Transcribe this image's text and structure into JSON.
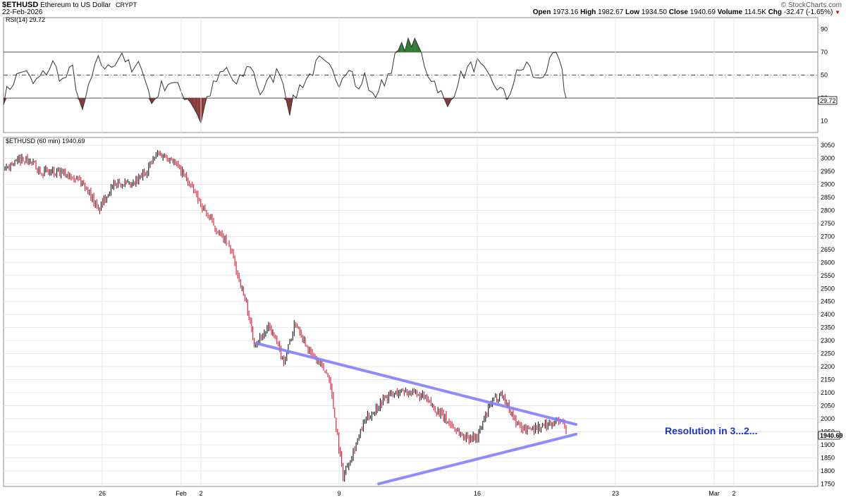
{
  "header": {
    "symbol": "$ETHUSD",
    "name": "Ethereum to US Dollar",
    "class": "CRYPT",
    "date": "22-Feb-2026",
    "brand": "© StockCharts.com",
    "open_label": "Open",
    "open": "1973.16",
    "high_label": "High",
    "high": "1982.67",
    "low_label": "Low",
    "low": "1934.50",
    "close_label": "Close",
    "close": "1940.69",
    "volume_label": "Volume",
    "volume": "114.5K",
    "chg_label": "Chg",
    "chg": "-32.47 (-1.65%)",
    "chg_arrow": "▼"
  },
  "colors": {
    "up": "#000000",
    "down": "#d6001c",
    "trendline": "#8080ff",
    "rsi_over": "#2e7d32",
    "rsi_under": "#8b3a3a",
    "annotation": "#1a33cc"
  },
  "chart_data": {
    "type": "line",
    "price_panel": {
      "label": "$ETHUSD (60 min) 1940.69",
      "ylim": [
        1740,
        3080
      ],
      "yticks": [
        1750,
        1800,
        1850,
        1900,
        1950,
        2000,
        2050,
        2100,
        2150,
        2200,
        2250,
        2300,
        2350,
        2400,
        2450,
        2500,
        2550,
        2600,
        2650,
        2700,
        2750,
        2800,
        2850,
        2900,
        2950,
        3000,
        3050
      ],
      "last_value": "1940.69",
      "series": [
        {
          "days": [
            0,
            1,
            2,
            2.7,
            3.5,
            4.2,
            4.8,
            5.3,
            5.8,
            6.5,
            7.2,
            7.8,
            8.5,
            9.2,
            10.5,
            11.5,
            12.3,
            12.7,
            13.5,
            14.2,
            14.8,
            15.5,
            16.5,
            17.2,
            18.3,
            19.3,
            20.3,
            21.3,
            22.5,
            23.3,
            24.0,
            24.7,
            25.2,
            26.1,
            26.6,
            27.3,
            28.2,
            28.5
          ],
          "values": [
            2960,
            3000,
            2950,
            2940,
            2940,
            2890,
            2800,
            2870,
            2910,
            2890,
            2950,
            3020,
            3000,
            2930,
            2760,
            2650,
            2440,
            2290,
            2350,
            2220,
            2370,
            2260,
            2160,
            1780,
            1990,
            2080,
            2110,
            2080,
            1990,
            1930,
            1930,
            2060,
            2100,
            1970,
            1960,
            1970,
            2000,
            1940
          ]
        }
      ],
      "trendlines": [
        {
          "x": [
            12.8,
            28.5
          ],
          "y": [
            2290,
            1970
          ]
        },
        {
          "x": [
            19.0,
            28.5
          ],
          "y": [
            1750,
            1935
          ]
        }
      ],
      "annotation": "Resolution in 3...2..."
    },
    "rsi_panel": {
      "label": "RSI(14) 29.72",
      "ylim": [
        0,
        100
      ],
      "yticks": [
        10,
        30,
        50,
        70,
        90
      ],
      "levels": [
        30,
        50,
        70
      ],
      "last_value": "29.72",
      "series": [
        {
          "days": [
            0,
            0.5,
            1,
            1.5,
            2,
            2.5,
            3,
            3.5,
            4,
            4.3,
            4.8,
            5.3,
            6,
            6.5,
            7,
            7.5,
            8,
            8.5,
            9,
            9.5,
            10,
            10.3,
            10.8,
            11.3,
            11.8,
            12.5,
            13,
            13.5,
            14,
            14.5,
            15,
            15.5,
            16,
            16.5,
            17,
            17.5,
            18,
            18.3,
            18.7,
            19.3,
            20,
            20.5,
            21,
            21.5,
            22,
            22.5,
            23,
            23.5,
            24,
            24.5,
            25,
            25.5,
            26,
            26.5,
            27,
            27.5,
            28,
            28.3,
            28.5
          ],
          "values": [
            30,
            45,
            55,
            42,
            50,
            60,
            45,
            55,
            15,
            40,
            62,
            55,
            70,
            52,
            60,
            25,
            40,
            45,
            35,
            28,
            10,
            30,
            45,
            55,
            40,
            60,
            35,
            45,
            55,
            20,
            40,
            50,
            62,
            55,
            45,
            60,
            35,
            50,
            30,
            45,
            70,
            80,
            75,
            52,
            40,
            20,
            45,
            55,
            60,
            48,
            40,
            30,
            50,
            60,
            45,
            55,
            68,
            50,
            30
          ]
        }
      ]
    },
    "x_axis": {
      "tick_labels": [
        "26",
        "Feb",
        "2",
        "9",
        "16",
        "23",
        "Mar",
        "2"
      ],
      "tick_days": [
        5,
        9,
        10,
        17,
        24,
        31,
        36,
        37
      ]
    }
  }
}
